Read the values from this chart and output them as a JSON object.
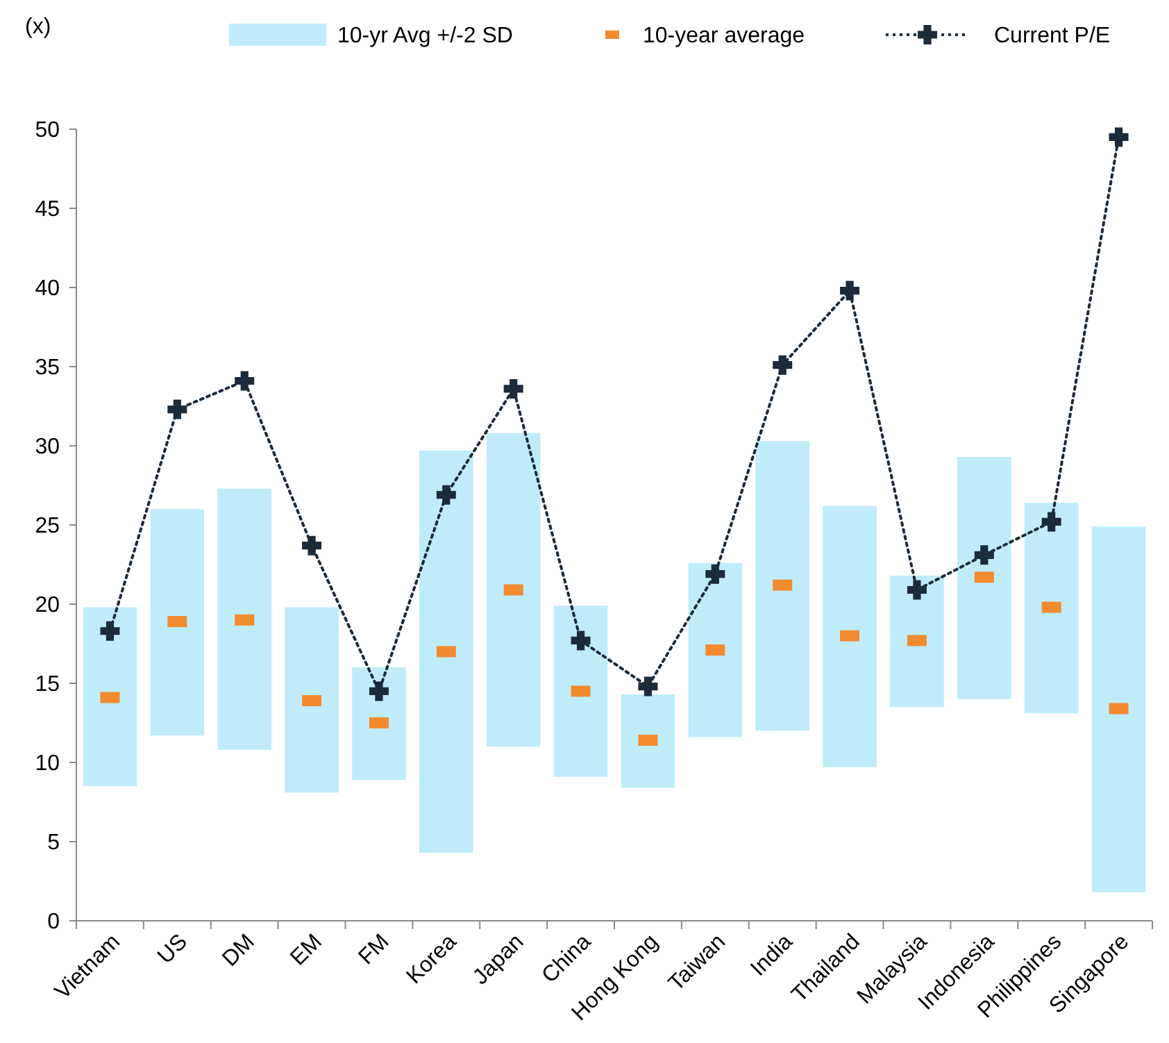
{
  "chart_data": {
    "type": "bar",
    "ylabel": "(x)",
    "categories": [
      "Vietnam",
      "US",
      "DM",
      "EM",
      "FM",
      "Korea",
      "Japan",
      "China",
      "Hong Kong",
      "Taiwan",
      "India",
      "Thailand",
      "Malaysia",
      "Indonesia",
      "Philippines",
      "Singapore"
    ],
    "series": [
      {
        "name": "10-yr Avg +/-2 SD",
        "color": "#c0ecfa",
        "base": [
          8.5,
          11.7,
          10.8,
          8.1,
          8.9,
          4.3,
          11.0,
          9.1,
          8.4,
          11.6,
          12.0,
          9.7,
          13.5,
          14.0,
          13.1,
          1.8
        ],
        "values": [
          11.3,
          14.3,
          16.5,
          11.7,
          7.1,
          25.4,
          19.8,
          10.8,
          5.9,
          11.0,
          18.3,
          16.5,
          8.3,
          15.3,
          13.3,
          23.1
        ]
      },
      {
        "name": "10-year average",
        "type": "scatter",
        "marker": "square",
        "color": "#f28a30",
        "values": [
          14.1,
          18.9,
          19.0,
          13.9,
          12.5,
          17.0,
          20.9,
          14.5,
          11.4,
          17.1,
          21.2,
          18.0,
          17.7,
          21.7,
          19.8,
          13.4
        ]
      },
      {
        "name": "Current P/E",
        "type": "line",
        "line_style": "dotted",
        "marker": "cross",
        "color": "#1c2b3a",
        "values": [
          18.3,
          32.3,
          34.1,
          23.7,
          14.5,
          26.9,
          33.6,
          17.7,
          14.8,
          21.9,
          35.1,
          39.8,
          20.9,
          23.1,
          25.2,
          49.5
        ]
      }
    ],
    "ylim": [
      0,
      50
    ],
    "yticks": [
      0,
      5,
      10,
      15,
      20,
      25,
      30,
      35,
      40,
      45,
      50
    ],
    "grid": false,
    "legend": "top"
  }
}
